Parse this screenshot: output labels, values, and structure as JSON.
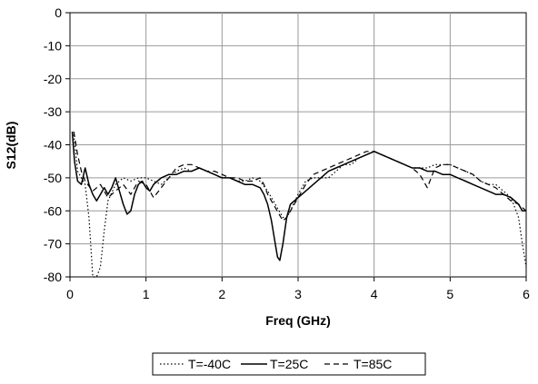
{
  "chart_data": {
    "type": "line",
    "title": "",
    "xlabel": "Freq (GHz)",
    "ylabel": "S12(dB)",
    "xlim": [
      0,
      6
    ],
    "ylim": [
      -80,
      0
    ],
    "x_ticks": [
      "0",
      "1",
      "2",
      "3",
      "4",
      "5",
      "6"
    ],
    "y_ticks": [
      "0",
      "-10",
      "-20",
      "-30",
      "-40",
      "-50",
      "-60",
      "-70",
      "-80"
    ],
    "grid": true,
    "legend_position": "bottom",
    "series": [
      {
        "name": "T=-40C",
        "style": "dotted",
        "color": "#000000",
        "x": [
          0.05,
          0.1,
          0.15,
          0.2,
          0.25,
          0.3,
          0.35,
          0.4,
          0.45,
          0.5,
          0.6,
          0.7,
          0.8,
          0.9,
          1.0,
          1.1,
          1.2,
          1.3,
          1.4,
          1.5,
          1.6,
          1.7,
          1.8,
          1.9,
          2.0,
          2.1,
          2.2,
          2.3,
          2.4,
          2.5,
          2.6,
          2.65,
          2.7,
          2.75,
          2.8,
          2.85,
          2.9,
          3.0,
          3.1,
          3.2,
          3.3,
          3.4,
          3.5,
          3.6,
          3.7,
          3.8,
          3.9,
          4.0,
          4.1,
          4.2,
          4.3,
          4.4,
          4.5,
          4.6,
          4.7,
          4.8,
          4.9,
          5.0,
          5.1,
          5.2,
          5.3,
          5.4,
          5.5,
          5.6,
          5.7,
          5.8,
          5.9,
          5.95,
          6.0
        ],
        "values": [
          -37,
          -48,
          -50,
          -52,
          -62,
          -80,
          -80,
          -77,
          -66,
          -57,
          -52,
          -50,
          -51,
          -50,
          -50,
          -51,
          -52,
          -50,
          -48,
          -47,
          -48,
          -47,
          -48,
          -49,
          -50,
          -50,
          -51,
          -51,
          -50,
          -51,
          -54,
          -56,
          -58,
          -60,
          -62,
          -62,
          -60,
          -55,
          -51,
          -50,
          -50,
          -50,
          -48,
          -46,
          -46,
          -44,
          -43,
          -42,
          -43,
          -44,
          -45,
          -46,
          -47,
          -47,
          -47,
          -46,
          -46,
          -46,
          -47,
          -48,
          -49,
          -51,
          -52,
          -52,
          -54,
          -56,
          -62,
          -70,
          -77
        ]
      },
      {
        "name": "T=25C",
        "style": "solid",
        "color": "#000000",
        "x": [
          0.03,
          0.06,
          0.1,
          0.15,
          0.2,
          0.25,
          0.3,
          0.35,
          0.4,
          0.45,
          0.5,
          0.55,
          0.6,
          0.65,
          0.7,
          0.75,
          0.8,
          0.85,
          0.9,
          0.95,
          1.0,
          1.05,
          1.1,
          1.15,
          1.2,
          1.3,
          1.4,
          1.5,
          1.6,
          1.7,
          1.8,
          1.9,
          2.0,
          2.1,
          2.2,
          2.3,
          2.4,
          2.5,
          2.55,
          2.6,
          2.65,
          2.7,
          2.73,
          2.76,
          2.8,
          2.85,
          2.9,
          3.0,
          3.1,
          3.2,
          3.3,
          3.4,
          3.5,
          3.6,
          3.7,
          3.8,
          3.9,
          4.0,
          4.1,
          4.2,
          4.3,
          4.4,
          4.5,
          4.6,
          4.7,
          4.8,
          4.9,
          5.0,
          5.1,
          5.2,
          5.3,
          5.4,
          5.5,
          5.6,
          5.7,
          5.8,
          5.9,
          5.95,
          6.0
        ],
        "values": [
          -36,
          -45,
          -51,
          -52,
          -47,
          -52,
          -55,
          -57,
          -55,
          -53,
          -55,
          -53,
          -50,
          -54,
          -58,
          -61,
          -60,
          -55,
          -52,
          -51,
          -53,
          -54,
          -52,
          -51,
          -50,
          -49,
          -49,
          -48,
          -48,
          -47,
          -48,
          -49,
          -50,
          -50,
          -51,
          -52,
          -52,
          -53,
          -55,
          -58,
          -63,
          -70,
          -74,
          -75,
          -70,
          -62,
          -58,
          -56,
          -54,
          -52,
          -50,
          -48,
          -47,
          -46,
          -45,
          -44,
          -43,
          -42,
          -43,
          -44,
          -45,
          -46,
          -47,
          -47,
          -48,
          -48,
          -49,
          -49,
          -50,
          -51,
          -52,
          -53,
          -54,
          -55,
          -55,
          -56,
          -58,
          -60,
          -60
        ]
      },
      {
        "name": "T=85C",
        "style": "dashed",
        "color": "#000000",
        "x": [
          0.05,
          0.1,
          0.15,
          0.2,
          0.3,
          0.4,
          0.5,
          0.6,
          0.7,
          0.8,
          0.9,
          1.0,
          1.1,
          1.2,
          1.3,
          1.4,
          1.5,
          1.6,
          1.7,
          1.8,
          1.9,
          2.0,
          2.1,
          2.2,
          2.3,
          2.4,
          2.5,
          2.55,
          2.6,
          2.65,
          2.7,
          2.75,
          2.8,
          2.85,
          2.9,
          3.0,
          3.1,
          3.2,
          3.3,
          3.4,
          3.5,
          3.6,
          3.7,
          3.8,
          3.9,
          4.0,
          4.1,
          4.2,
          4.3,
          4.4,
          4.5,
          4.6,
          4.65,
          4.7,
          4.8,
          4.9,
          5.0,
          5.1,
          5.2,
          5.3,
          5.4,
          5.5,
          5.6,
          5.7,
          5.8,
          5.9,
          6.0
        ],
        "values": [
          -36,
          -43,
          -48,
          -51,
          -54,
          -52,
          -56,
          -54,
          -52,
          -55,
          -51,
          -52,
          -56,
          -53,
          -50,
          -47,
          -46,
          -46,
          -47,
          -48,
          -48,
          -49,
          -50,
          -50,
          -51,
          -51,
          -50,
          -52,
          -55,
          -57,
          -59,
          -61,
          -63,
          -62,
          -60,
          -56,
          -52,
          -49,
          -48,
          -47,
          -46,
          -45,
          -44,
          -43,
          -42,
          -42,
          -43,
          -44,
          -45,
          -46,
          -47,
          -49,
          -51,
          -53,
          -47,
          -46,
          -46,
          -47,
          -48,
          -49,
          -51,
          -52,
          -53,
          -55,
          -57,
          -58,
          -60
        ]
      }
    ]
  }
}
